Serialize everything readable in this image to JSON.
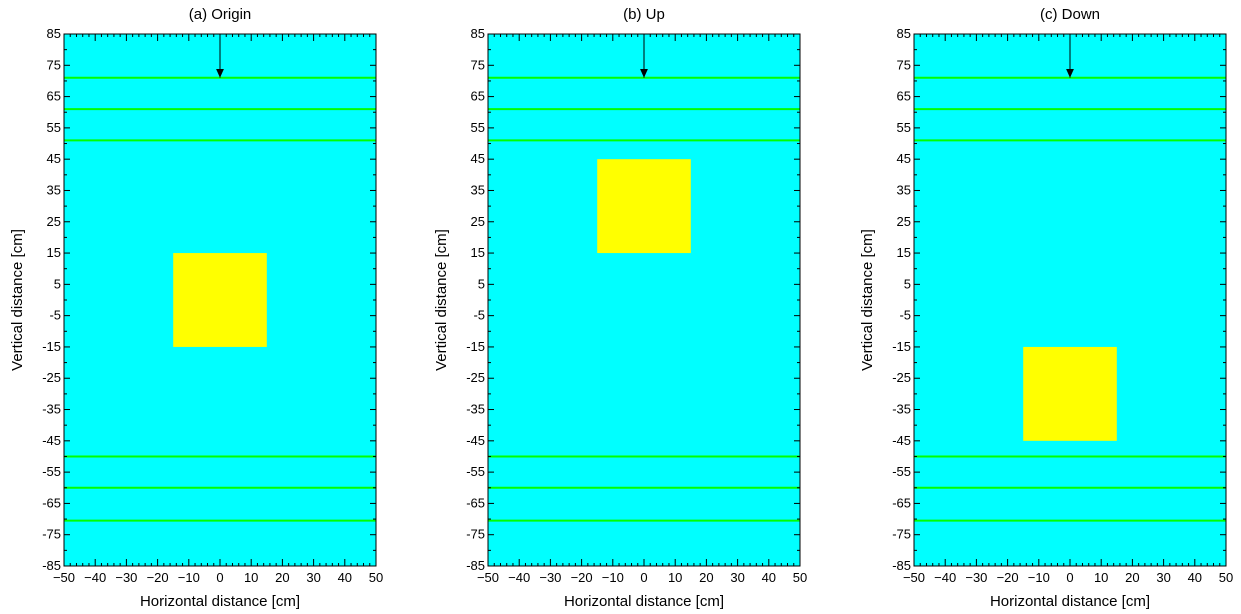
{
  "colors": {
    "background": "#00ffff",
    "block": "#ffff00",
    "layer_line": "#00ff00",
    "arrow": "#000000"
  },
  "chart_data": [
    {
      "type": "heatmap",
      "title": "(a) Origin",
      "xlabel": "Horizontal distance [cm]",
      "ylabel": "Vertical distance [cm]",
      "xlim": [
        -50,
        50
      ],
      "ylim": [
        -85,
        85
      ],
      "xticks": [
        "−50",
        "−40",
        "−30",
        "−20",
        "−10",
        "0",
        "10",
        "20",
        "30",
        "40",
        "50"
      ],
      "yticks": [
        "85",
        "75",
        "65",
        "55",
        "45",
        "35",
        "25",
        "15",
        "5",
        "-5",
        "-15",
        "-25",
        "-35",
        "-45",
        "-55",
        "-65",
        "-75",
        "-85"
      ],
      "block": {
        "x": [
          -15,
          15
        ],
        "y": [
          -15,
          15
        ]
      },
      "horizontal_lines_y": [
        71,
        61,
        51,
        -50,
        -60,
        -70.5
      ],
      "arrow": {
        "x": 0,
        "y_from": 85,
        "y_to": 71
      }
    },
    {
      "type": "heatmap",
      "title": "(b) Up",
      "xlabel": "Horizontal distance [cm]",
      "ylabel": "Vertical distance [cm]",
      "xlim": [
        -50,
        50
      ],
      "ylim": [
        -85,
        85
      ],
      "xticks": [
        "−50",
        "−40",
        "−30",
        "−20",
        "−10",
        "0",
        "10",
        "20",
        "30",
        "40",
        "50"
      ],
      "yticks": [
        "85",
        "75",
        "65",
        "55",
        "45",
        "35",
        "25",
        "15",
        "5",
        "-5",
        "-15",
        "-25",
        "-35",
        "-45",
        "-55",
        "-65",
        "-75",
        "-85"
      ],
      "block": {
        "x": [
          -15,
          15
        ],
        "y": [
          15,
          45
        ]
      },
      "horizontal_lines_y": [
        71,
        61,
        51,
        -50,
        -60,
        -70.5
      ],
      "arrow": {
        "x": 0,
        "y_from": 85,
        "y_to": 71
      }
    },
    {
      "type": "heatmap",
      "title": "(c) Down",
      "xlabel": "Horizontal distance [cm]",
      "ylabel": "Vertical distance [cm]",
      "xlim": [
        -50,
        50
      ],
      "ylim": [
        -85,
        85
      ],
      "xticks": [
        "−50",
        "−40",
        "−30",
        "−20",
        "−10",
        "0",
        "10",
        "20",
        "30",
        "40",
        "50"
      ],
      "yticks": [
        "85",
        "75",
        "65",
        "55",
        "45",
        "35",
        "25",
        "15",
        "5",
        "-5",
        "-15",
        "-25",
        "-35",
        "-45",
        "-55",
        "-65",
        "-75",
        "-85"
      ],
      "block": {
        "x": [
          -15,
          15
        ],
        "y": [
          -45,
          -15
        ]
      },
      "horizontal_lines_y": [
        71,
        61,
        51,
        -50,
        -60,
        -70.5
      ],
      "arrow": {
        "x": 0,
        "y_from": 85,
        "y_to": 71
      }
    }
  ]
}
